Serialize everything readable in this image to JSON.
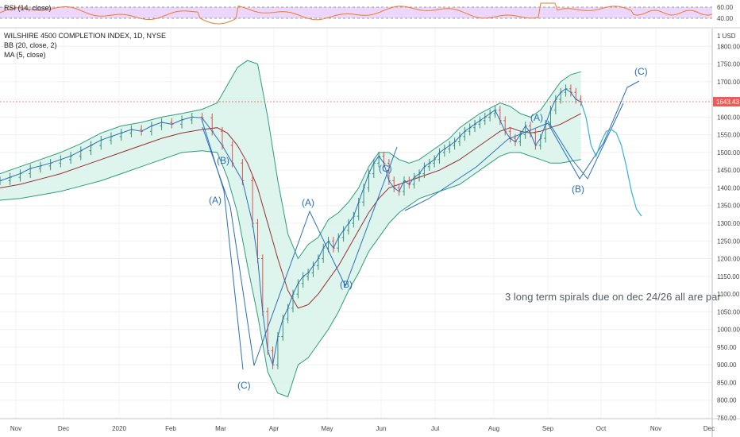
{
  "rsi_panel": {
    "label": "RSI (14, close)",
    "levels": [
      "60.00",
      "40.00"
    ],
    "line_color": "#f07a29",
    "band_color": "#ead7fb"
  },
  "main_panel": {
    "title": "WILSHIRE 4500 COMPLETION INDEX, 1D, NYSE",
    "indicator_bb": "BB (20, close, 2)",
    "indicator_ma": "MA (5, close)",
    "currency_tick": "1 USD",
    "current_price": "1643.43",
    "note": "3 long term spirals due on dec 24/26  all are par",
    "colors": {
      "band_fill": "#d8f3ea",
      "band_line": "#2e9c7f",
      "basis_line": "#9a2c36",
      "ma_line": "#2a6fb8",
      "projection": "#35b3d4",
      "up_bar": "#3a8f7a",
      "down_bar": "#d9534f",
      "price_line": "#ef5a5a",
      "wave_label": "#2a6fb8"
    }
  },
  "wave_labels": [
    "(A)",
    "(B)",
    "(C)",
    "(A)",
    "(B)",
    "(C)",
    "(A)",
    "(B)",
    "(C)"
  ],
  "chart_data": {
    "type": "line",
    "ylim": [
      750,
      1850
    ],
    "y_ticks": [
      1800,
      1750,
      1700,
      1650,
      1600,
      1550,
      1500,
      1450,
      1400,
      1350,
      1300,
      1250,
      1200,
      1150,
      1100,
      1050,
      1000,
      950,
      900,
      850,
      800,
      750
    ],
    "y_tick_labels": [
      "1800.00",
      "1750.00",
      "1700.00",
      "1650.00",
      "1600.00",
      "1550.00",
      "1500.00",
      "1450.00",
      "1400.00",
      "1350.00",
      "1300.00",
      "1250.00",
      "1200.00",
      "1150.00",
      "1100.00",
      "1050.00",
      "1000.00",
      "950.00",
      "900.00",
      "850.00",
      "800.00",
      "750.00"
    ],
    "x_tick_labels": [
      "Nov",
      "Dec",
      "2020",
      "Feb",
      "Mar",
      "Apr",
      "May",
      "Jun",
      "Jul",
      "Aug",
      "Sep",
      "Oct",
      "Nov",
      "Dec"
    ],
    "series": [
      {
        "key": "close",
        "points": [
          [
            0,
            1420
          ],
          [
            10,
            1430
          ],
          [
            20,
            1440
          ],
          [
            30,
            1455
          ],
          [
            40,
            1462
          ],
          [
            50,
            1470
          ],
          [
            60,
            1480
          ],
          [
            70,
            1490
          ],
          [
            80,
            1505
          ],
          [
            90,
            1520
          ],
          [
            100,
            1535
          ],
          [
            110,
            1545
          ],
          [
            120,
            1555
          ],
          [
            130,
            1565
          ],
          [
            140,
            1560
          ],
          [
            150,
            1575
          ],
          [
            160,
            1585
          ],
          [
            170,
            1580
          ],
          [
            180,
            1592
          ],
          [
            190,
            1600
          ],
          [
            200,
            1598
          ],
          [
            210,
            1560
          ],
          [
            220,
            1520
          ],
          [
            230,
            1470
          ],
          [
            240,
            1420
          ],
          [
            250,
            1300
          ],
          [
            255,
            1200
          ],
          [
            260,
            1050
          ],
          [
            265,
            940
          ],
          [
            270,
            900
          ],
          [
            275,
            980
          ],
          [
            280,
            1030
          ],
          [
            285,
            1060
          ],
          [
            290,
            1100
          ],
          [
            295,
            1130
          ],
          [
            300,
            1150
          ],
          [
            305,
            1160
          ],
          [
            310,
            1180
          ],
          [
            315,
            1200
          ],
          [
            320,
            1230
          ],
          [
            325,
            1250
          ],
          [
            330,
            1230
          ],
          [
            335,
            1260
          ],
          [
            340,
            1280
          ],
          [
            345,
            1300
          ],
          [
            350,
            1320
          ],
          [
            355,
            1360
          ],
          [
            360,
            1400
          ],
          [
            365,
            1440
          ],
          [
            370,
            1470
          ],
          [
            375,
            1490
          ],
          [
            380,
            1470
          ],
          [
            385,
            1420
          ],
          [
            390,
            1400
          ],
          [
            395,
            1390
          ],
          [
            400,
            1420
          ],
          [
            405,
            1410
          ],
          [
            410,
            1430
          ],
          [
            415,
            1440
          ],
          [
            420,
            1460
          ],
          [
            425,
            1470
          ],
          [
            430,
            1480
          ],
          [
            435,
            1500
          ],
          [
            440,
            1510
          ],
          [
            445,
            1520
          ],
          [
            450,
            1530
          ],
          [
            455,
            1545
          ],
          [
            460,
            1560
          ],
          [
            465,
            1570
          ],
          [
            470,
            1580
          ],
          [
            475,
            1590
          ],
          [
            480,
            1600
          ],
          [
            485,
            1610
          ],
          [
            490,
            1620
          ],
          [
            495,
            1590
          ],
          [
            500,
            1560
          ],
          [
            505,
            1540
          ],
          [
            510,
            1530
          ],
          [
            515,
            1550
          ],
          [
            520,
            1575
          ],
          [
            525,
            1555
          ],
          [
            530,
            1520
          ],
          [
            535,
            1540
          ],
          [
            540,
            1580
          ],
          [
            545,
            1620
          ],
          [
            550,
            1650
          ],
          [
            555,
            1670
          ],
          [
            560,
            1680
          ],
          [
            565,
            1670
          ],
          [
            570,
            1650
          ],
          [
            575,
            1643
          ]
        ]
      },
      {
        "key": "bb_upper",
        "points": [
          [
            0,
            1440
          ],
          [
            20,
            1460
          ],
          [
            40,
            1480
          ],
          [
            60,
            1500
          ],
          [
            80,
            1525
          ],
          [
            100,
            1555
          ],
          [
            120,
            1575
          ],
          [
            140,
            1585
          ],
          [
            160,
            1600
          ],
          [
            180,
            1610
          ],
          [
            200,
            1622
          ],
          [
            215,
            1640
          ],
          [
            225,
            1690
          ],
          [
            235,
            1740
          ],
          [
            245,
            1760
          ],
          [
            255,
            1750
          ],
          [
            265,
            1600
          ],
          [
            275,
            1420
          ],
          [
            285,
            1270
          ],
          [
            295,
            1200
          ],
          [
            305,
            1240
          ],
          [
            315,
            1260
          ],
          [
            325,
            1310
          ],
          [
            335,
            1330
          ],
          [
            345,
            1360
          ],
          [
            355,
            1400
          ],
          [
            365,
            1460
          ],
          [
            375,
            1500
          ],
          [
            385,
            1500
          ],
          [
            395,
            1480
          ],
          [
            405,
            1470
          ],
          [
            415,
            1480
          ],
          [
            425,
            1500
          ],
          [
            435,
            1520
          ],
          [
            445,
            1540
          ],
          [
            455,
            1570
          ],
          [
            465,
            1590
          ],
          [
            475,
            1610
          ],
          [
            485,
            1625
          ],
          [
            495,
            1640
          ],
          [
            505,
            1630
          ],
          [
            515,
            1610
          ],
          [
            525,
            1600
          ],
          [
            535,
            1620
          ],
          [
            545,
            1660
          ],
          [
            555,
            1700
          ],
          [
            565,
            1720
          ],
          [
            575,
            1728
          ]
        ]
      },
      {
        "key": "bb_basis",
        "points": [
          [
            0,
            1400
          ],
          [
            20,
            1410
          ],
          [
            40,
            1425
          ],
          [
            60,
            1440
          ],
          [
            80,
            1460
          ],
          [
            100,
            1480
          ],
          [
            120,
            1500
          ],
          [
            140,
            1520
          ],
          [
            160,
            1540
          ],
          [
            180,
            1555
          ],
          [
            200,
            1565
          ],
          [
            215,
            1570
          ],
          [
            225,
            1555
          ],
          [
            235,
            1520
          ],
          [
            245,
            1470
          ],
          [
            255,
            1400
          ],
          [
            265,
            1300
          ],
          [
            275,
            1200
          ],
          [
            285,
            1110
          ],
          [
            295,
            1060
          ],
          [
            305,
            1070
          ],
          [
            315,
            1100
          ],
          [
            325,
            1140
          ],
          [
            335,
            1180
          ],
          [
            345,
            1230
          ],
          [
            355,
            1280
          ],
          [
            365,
            1330
          ],
          [
            375,
            1370
          ],
          [
            385,
            1400
          ],
          [
            395,
            1410
          ],
          [
            405,
            1420
          ],
          [
            415,
            1430
          ],
          [
            425,
            1440
          ],
          [
            435,
            1450
          ],
          [
            445,
            1465
          ],
          [
            455,
            1480
          ],
          [
            465,
            1500
          ],
          [
            475,
            1520
          ],
          [
            485,
            1540
          ],
          [
            495,
            1560
          ],
          [
            505,
            1570
          ],
          [
            515,
            1560
          ],
          [
            525,
            1555
          ],
          [
            535,
            1560
          ],
          [
            545,
            1570
          ],
          [
            555,
            1580
          ],
          [
            565,
            1595
          ],
          [
            575,
            1610
          ]
        ]
      },
      {
        "key": "bb_lower",
        "points": [
          [
            0,
            1365
          ],
          [
            20,
            1370
          ],
          [
            40,
            1380
          ],
          [
            60,
            1390
          ],
          [
            80,
            1405
          ],
          [
            100,
            1420
          ],
          [
            120,
            1440
          ],
          [
            140,
            1460
          ],
          [
            160,
            1480
          ],
          [
            180,
            1500
          ],
          [
            200,
            1505
          ],
          [
            215,
            1500
          ],
          [
            225,
            1430
          ],
          [
            235,
            1330
          ],
          [
            245,
            1180
          ],
          [
            255,
            1040
          ],
          [
            265,
            880
          ],
          [
            275,
            820
          ],
          [
            285,
            810
          ],
          [
            295,
            900
          ],
          [
            305,
            920
          ],
          [
            315,
            960
          ],
          [
            325,
            1000
          ],
          [
            335,
            1050
          ],
          [
            345,
            1110
          ],
          [
            355,
            1160
          ],
          [
            365,
            1220
          ],
          [
            375,
            1260
          ],
          [
            385,
            1300
          ],
          [
            395,
            1330
          ],
          [
            405,
            1350
          ],
          [
            415,
            1370
          ],
          [
            425,
            1380
          ],
          [
            435,
            1390
          ],
          [
            445,
            1400
          ],
          [
            455,
            1410
          ],
          [
            465,
            1430
          ],
          [
            475,
            1450
          ],
          [
            485,
            1470
          ],
          [
            495,
            1490
          ],
          [
            505,
            1500
          ],
          [
            515,
            1500
          ],
          [
            525,
            1490
          ],
          [
            535,
            1480
          ],
          [
            545,
            1470
          ],
          [
            555,
            1470
          ],
          [
            565,
            1475
          ],
          [
            575,
            1480
          ]
        ]
      },
      {
        "key": "projection",
        "points": [
          [
            575,
            1643
          ],
          [
            580,
            1600
          ],
          [
            585,
            1520
          ],
          [
            590,
            1490
          ],
          [
            595,
            1530
          ],
          [
            600,
            1560
          ],
          [
            605,
            1565
          ],
          [
            610,
            1555
          ],
          [
            615,
            1520
          ],
          [
            620,
            1460
          ],
          [
            625,
            1390
          ],
          [
            630,
            1340
          ],
          [
            635,
            1320
          ]
        ]
      }
    ],
    "current_price": 1643.43
  }
}
